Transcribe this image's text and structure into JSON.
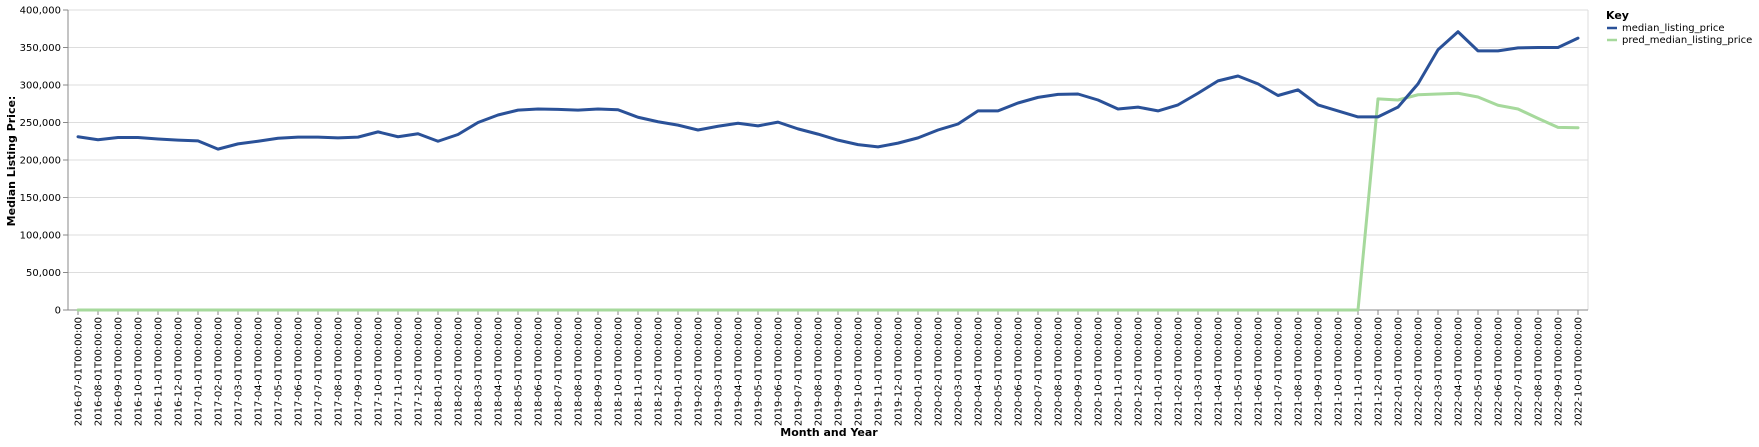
{
  "chart_data": {
    "type": "line",
    "title": "",
    "xlabel": "Month and Year",
    "ylabel": "Median Listing Price:",
    "ylim": [
      0,
      400000
    ],
    "yticks": [
      0,
      50000,
      100000,
      150000,
      200000,
      250000,
      300000,
      350000,
      400000
    ],
    "ytick_labels": [
      "0",
      "50,000",
      "100,000",
      "150,000",
      "200,000",
      "250,000",
      "300,000",
      "350,000",
      "400,000"
    ],
    "grid": true,
    "legend": {
      "title": "Key",
      "position": "top-right"
    },
    "x": [
      "2016-07-01T00:00:00",
      "2016-08-01T00:00:00",
      "2016-09-01T00:00:00",
      "2016-10-01T00:00:00",
      "2016-11-01T00:00:00",
      "2016-12-01T00:00:00",
      "2017-01-01T00:00:00",
      "2017-02-01T00:00:00",
      "2017-03-01T00:00:00",
      "2017-04-01T00:00:00",
      "2017-05-01T00:00:00",
      "2017-06-01T00:00:00",
      "2017-07-01T00:00:00",
      "2017-08-01T00:00:00",
      "2017-09-01T00:00:00",
      "2017-10-01T00:00:00",
      "2017-11-01T00:00:00",
      "2017-12-01T00:00:00",
      "2018-01-01T00:00:00",
      "2018-02-01T00:00:00",
      "2018-03-01T00:00:00",
      "2018-04-01T00:00:00",
      "2018-05-01T00:00:00",
      "2018-06-01T00:00:00",
      "2018-07-01T00:00:00",
      "2018-08-01T00:00:00",
      "2018-09-01T00:00:00",
      "2018-10-01T00:00:00",
      "2018-11-01T00:00:00",
      "2018-12-01T00:00:00",
      "2019-01-01T00:00:00",
      "2019-02-01T00:00:00",
      "2019-03-01T00:00:00",
      "2019-04-01T00:00:00",
      "2019-05-01T00:00:00",
      "2019-06-01T00:00:00",
      "2019-07-01T00:00:00",
      "2019-08-01T00:00:00",
      "2019-09-01T00:00:00",
      "2019-10-01T00:00:00",
      "2019-11-01T00:00:00",
      "2019-12-01T00:00:00",
      "2020-01-01T00:00:00",
      "2020-02-01T00:00:00",
      "2020-03-01T00:00:00",
      "2020-04-01T00:00:00",
      "2020-05-01T00:00:00",
      "2020-06-01T00:00:00",
      "2020-07-01T00:00:00",
      "2020-08-01T00:00:00",
      "2020-09-01T00:00:00",
      "2020-10-01T00:00:00",
      "2020-11-01T00:00:00",
      "2020-12-01T00:00:00",
      "2021-01-01T00:00:00",
      "2021-02-01T00:00:00",
      "2021-03-01T00:00:00",
      "2021-04-01T00:00:00",
      "2021-05-01T00:00:00",
      "2021-06-01T00:00:00",
      "2021-07-01T00:00:00",
      "2021-08-01T00:00:00",
      "2021-09-01T00:00:00",
      "2021-10-01T00:00:00",
      "2021-11-01T00:00:00",
      "2021-12-01T00:00:00",
      "2022-01-01T00:00:00",
      "2022-02-01T00:00:00",
      "2022-03-01T00:00:00",
      "2022-04-01T00:00:00",
      "2022-05-01T00:00:00",
      "2022-06-01T00:00:00",
      "2022-07-01T00:00:00",
      "2022-08-01T00:00:00",
      "2022-09-01T00:00:00",
      "2022-10-01T00:00:00"
    ],
    "series": [
      {
        "name": "median_listing_price",
        "color": "#2a5198",
        "values": [
          231000,
          227000,
          230000,
          230000,
          228000,
          226500,
          225500,
          214500,
          221500,
          225000,
          229000,
          230500,
          230500,
          229500,
          230500,
          237500,
          231000,
          235000,
          225000,
          234000,
          250000,
          260000,
          266500,
          268000,
          267500,
          266500,
          268000,
          267000,
          257000,
          251000,
          246500,
          240000,
          245000,
          249000,
          245500,
          250500,
          241500,
          234500,
          226500,
          220500,
          217500,
          222500,
          229500,
          240000,
          248000,
          265500,
          265500,
          276000,
          283500,
          287500,
          288000,
          280000,
          268000,
          270500,
          265500,
          273500,
          289000,
          305500,
          312000,
          301500,
          286000,
          293500,
          273500,
          265500,
          257500,
          257500,
          270500,
          301500,
          347000,
          371000,
          345500,
          345500,
          349500,
          350000,
          350000,
          362500
        ]
      },
      {
        "name": "pred_median_listing_price",
        "color": "#a6d99c",
        "values": [
          0,
          0,
          0,
          0,
          0,
          0,
          0,
          0,
          0,
          0,
          0,
          0,
          0,
          0,
          0,
          0,
          0,
          0,
          0,
          0,
          0,
          0,
          0,
          0,
          0,
          0,
          0,
          0,
          0,
          0,
          0,
          0,
          0,
          0,
          0,
          0,
          0,
          0,
          0,
          0,
          0,
          0,
          0,
          0,
          0,
          0,
          0,
          0,
          0,
          0,
          0,
          0,
          0,
          0,
          0,
          0,
          0,
          0,
          0,
          0,
          0,
          0,
          0,
          0,
          0,
          281500,
          280000,
          287000,
          288000,
          289000,
          284000,
          273000,
          268000,
          255500,
          243500,
          243000
        ]
      }
    ]
  }
}
